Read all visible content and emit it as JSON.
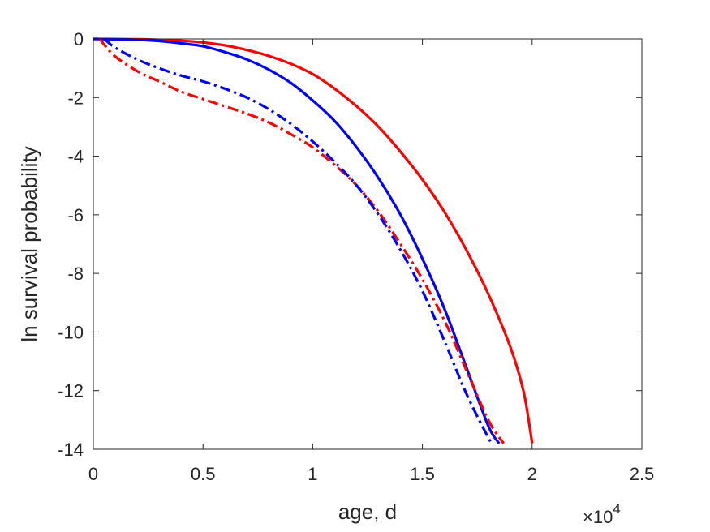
{
  "chart_data": {
    "type": "line",
    "title": "",
    "xlabel": "age, d",
    "ylabel": "ln survival probability",
    "x_multiplier_label": {
      "base": "×10",
      "exponent": "4"
    },
    "xlim": [
      0,
      2.5
    ],
    "ylim": [
      -14,
      0
    ],
    "xticks": [
      0,
      0.5,
      1,
      1.5,
      2,
      2.5
    ],
    "xtick_labels": [
      "0",
      "0.5",
      "1",
      "1.5",
      "2",
      "2.5"
    ],
    "yticks": [
      0,
      -2,
      -4,
      -6,
      -8,
      -10,
      -12,
      -14
    ],
    "ytick_labels": [
      "0",
      "-2",
      "-4",
      "-6",
      "-8",
      "-10",
      "-12",
      "-14"
    ],
    "grid": false,
    "legend": "none",
    "series": [
      {
        "color": "#ff0000",
        "style": "solid",
        "points": [
          [
            0,
            0
          ],
          [
            0.2,
            -0.01
          ],
          [
            0.3,
            -0.03
          ],
          [
            0.4,
            -0.06
          ],
          [
            0.5,
            -0.12
          ],
          [
            0.6,
            -0.22
          ],
          [
            0.7,
            -0.38
          ],
          [
            0.8,
            -0.58
          ],
          [
            0.9,
            -0.85
          ],
          [
            1.0,
            -1.2
          ],
          [
            1.1,
            -1.7
          ],
          [
            1.2,
            -2.3
          ],
          [
            1.3,
            -3.0
          ],
          [
            1.4,
            -3.85
          ],
          [
            1.5,
            -4.8
          ],
          [
            1.6,
            -5.9
          ],
          [
            1.7,
            -7.2
          ],
          [
            1.8,
            -8.7
          ],
          [
            1.9,
            -10.5
          ],
          [
            1.96,
            -12.0
          ],
          [
            1.99,
            -13.3
          ],
          [
            2.0,
            -13.8
          ]
        ]
      },
      {
        "color": "#0000ff",
        "style": "solid",
        "points": [
          [
            0,
            0
          ],
          [
            0.1,
            -0.01
          ],
          [
            0.2,
            -0.03
          ],
          [
            0.3,
            -0.07
          ],
          [
            0.4,
            -0.15
          ],
          [
            0.5,
            -0.25
          ],
          [
            0.6,
            -0.45
          ],
          [
            0.7,
            -0.7
          ],
          [
            0.8,
            -1.05
          ],
          [
            0.9,
            -1.5
          ],
          [
            1.0,
            -2.1
          ],
          [
            1.1,
            -2.8
          ],
          [
            1.2,
            -3.7
          ],
          [
            1.3,
            -4.75
          ],
          [
            1.4,
            -6.0
          ],
          [
            1.5,
            -7.5
          ],
          [
            1.6,
            -9.2
          ],
          [
            1.7,
            -11.2
          ],
          [
            1.8,
            -13.2
          ],
          [
            1.85,
            -13.8
          ]
        ]
      },
      {
        "color": "#ff0000",
        "style": "dashdot",
        "points": [
          [
            0.03,
            0
          ],
          [
            0.05,
            -0.2
          ],
          [
            0.1,
            -0.6
          ],
          [
            0.2,
            -1.1
          ],
          [
            0.3,
            -1.45
          ],
          [
            0.4,
            -1.8
          ],
          [
            0.5,
            -2.05
          ],
          [
            0.6,
            -2.3
          ],
          [
            0.7,
            -2.55
          ],
          [
            0.8,
            -2.85
          ],
          [
            0.9,
            -3.25
          ],
          [
            1.0,
            -3.7
          ],
          [
            1.1,
            -4.3
          ],
          [
            1.2,
            -5.0
          ],
          [
            1.3,
            -5.9
          ],
          [
            1.4,
            -7.0
          ],
          [
            1.5,
            -8.2
          ],
          [
            1.6,
            -9.6
          ],
          [
            1.7,
            -11.3
          ],
          [
            1.8,
            -13.0
          ],
          [
            1.87,
            -13.8
          ]
        ]
      },
      {
        "color": "#0000ff",
        "style": "dashdot",
        "points": [
          [
            0.05,
            0
          ],
          [
            0.1,
            -0.3
          ],
          [
            0.2,
            -0.7
          ],
          [
            0.3,
            -1.0
          ],
          [
            0.4,
            -1.25
          ],
          [
            0.5,
            -1.45
          ],
          [
            0.6,
            -1.7
          ],
          [
            0.7,
            -2.0
          ],
          [
            0.8,
            -2.4
          ],
          [
            0.9,
            -2.9
          ],
          [
            1.0,
            -3.5
          ],
          [
            1.1,
            -4.2
          ],
          [
            1.2,
            -5.0
          ],
          [
            1.3,
            -6.0
          ],
          [
            1.4,
            -7.2
          ],
          [
            1.5,
            -8.6
          ],
          [
            1.6,
            -10.3
          ],
          [
            1.7,
            -12.1
          ],
          [
            1.8,
            -13.6
          ],
          [
            1.82,
            -13.8
          ]
        ]
      }
    ]
  }
}
